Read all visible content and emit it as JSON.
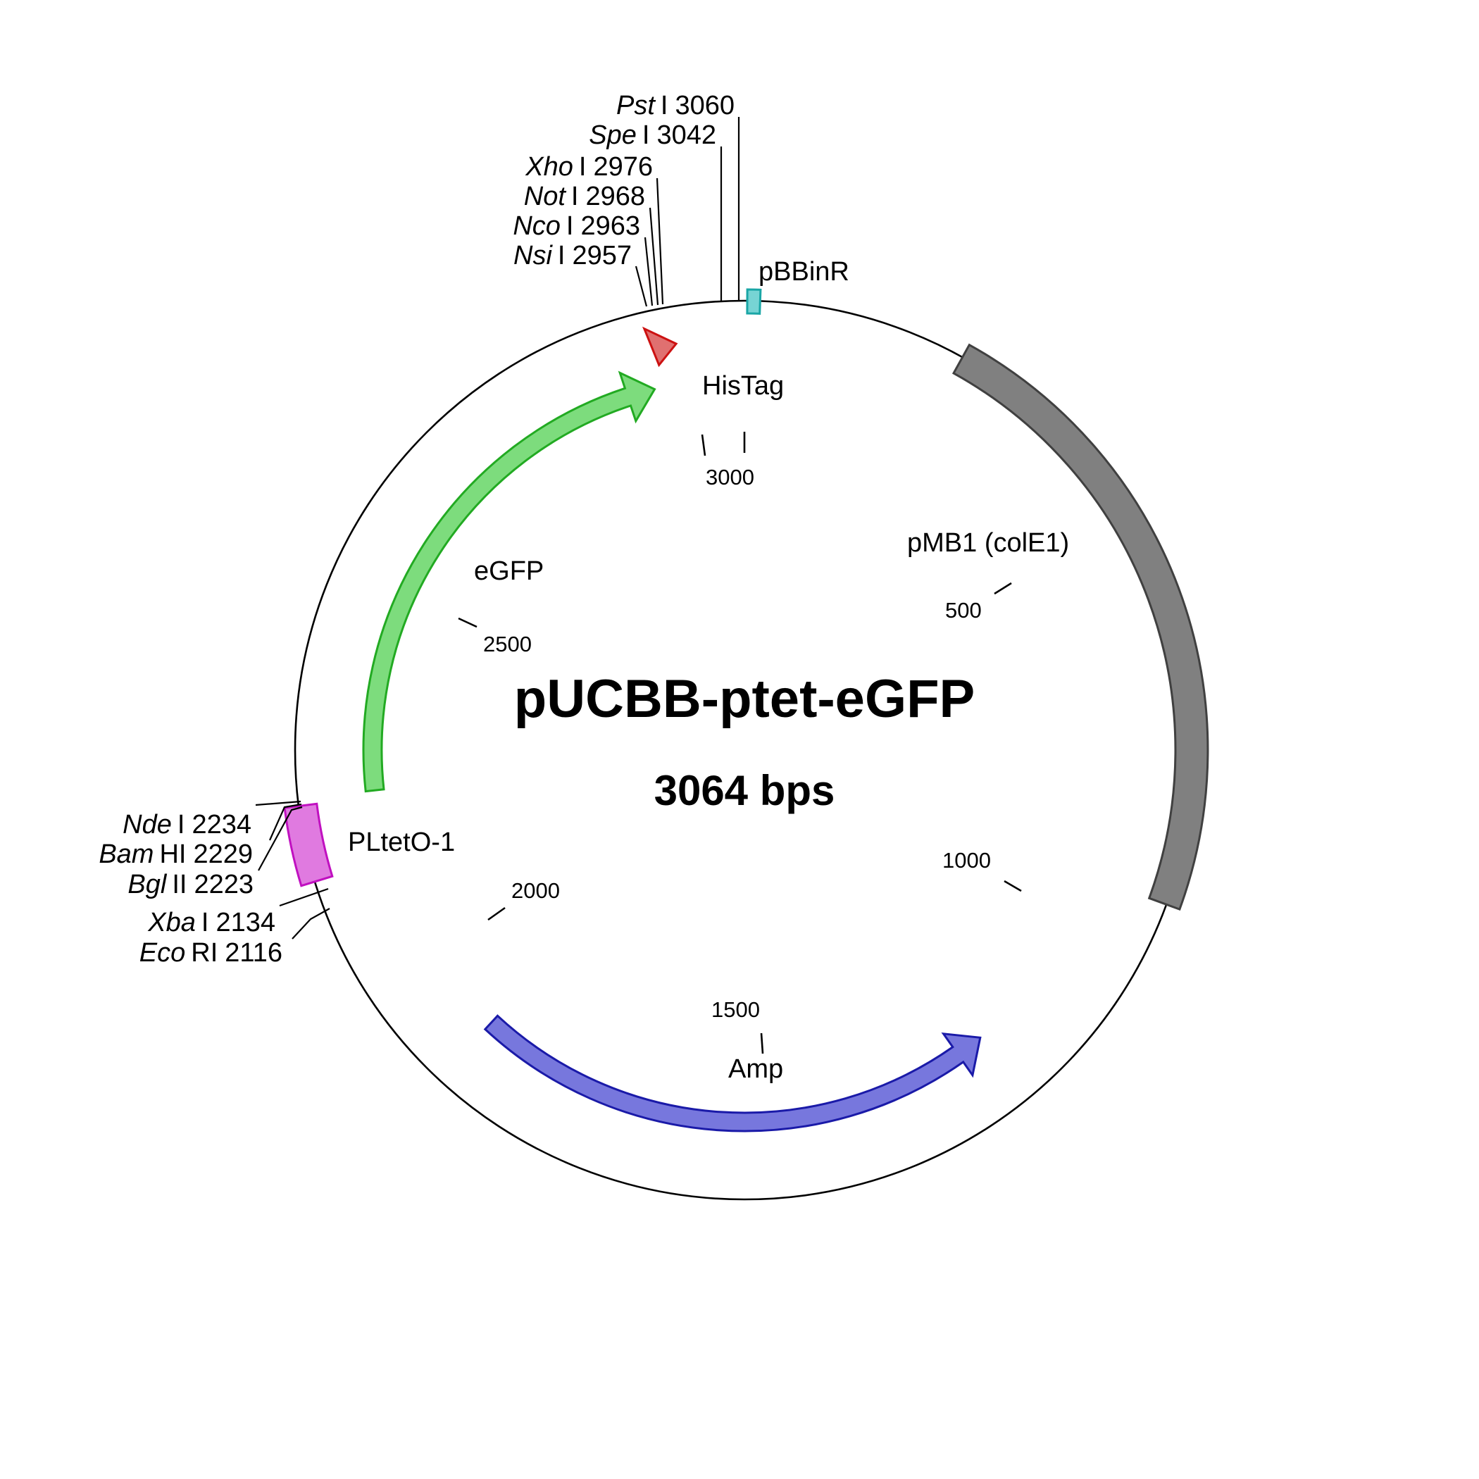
{
  "plasmid": {
    "name": "pUCBB-ptet-eGFP",
    "size_label": "3064 bps",
    "length_bp": 3064
  },
  "features": [
    {
      "key": "colE1",
      "label": "pMB1 (colE1)",
      "start": 230,
      "end": 920,
      "color": "#808080",
      "stroke": "#404040",
      "kind": "band"
    },
    {
      "key": "amp",
      "label": "Amp",
      "start": 1180,
      "end": 1880,
      "color": "#7777dd",
      "stroke": "#1a1aa8",
      "kind": "arrow",
      "strand": "reverse"
    },
    {
      "key": "pltet",
      "label": "PLtetO-1",
      "start": 2136,
      "end": 2220,
      "color": "#e07ae0",
      "stroke": "#c010c0",
      "kind": "box"
    },
    {
      "key": "egfp",
      "label": "eGFP",
      "start": 2228,
      "end": 2928,
      "color": "#7ddc7d",
      "stroke": "#22aa22",
      "kind": "arrow",
      "strand": "forward"
    },
    {
      "key": "histag",
      "label": "HisTag",
      "start": 2938,
      "end": 2956,
      "color": "#e07070",
      "stroke": "#cc1111",
      "kind": "tri"
    },
    {
      "key": "pbbinr",
      "label": "pBBinR",
      "start": 3050,
      "end": 3064,
      "color": "#77d4d4",
      "stroke": "#1aa6a6",
      "kind": "box"
    }
  ],
  "sites": [
    {
      "key": "psti",
      "enzyme": "Pst",
      "suffix": "I",
      "position": "3060",
      "pos": 3060
    },
    {
      "key": "spei",
      "enzyme": "Spe",
      "suffix": "I",
      "position": "3042",
      "pos": 3042
    },
    {
      "key": "xhoi",
      "enzyme": "Xho",
      "suffix": "I",
      "position": "2976",
      "pos": 2976
    },
    {
      "key": "noti",
      "enzyme": "Not",
      "suffix": "I",
      "position": "2968",
      "pos": 2968
    },
    {
      "key": "ncoi",
      "enzyme": "Nco",
      "suffix": "I",
      "position": "2963",
      "pos": 2963
    },
    {
      "key": "nsii",
      "enzyme": "Nsi",
      "suffix": "I",
      "position": "2957",
      "pos": 2957
    },
    {
      "key": "ndei",
      "enzyme": "Nde",
      "suffix": "I",
      "position": "2234",
      "pos": 2234
    },
    {
      "key": "bamhi",
      "enzyme": "Bam",
      "suffix": "HI",
      "position": "2229",
      "pos": 2229
    },
    {
      "key": "bglii",
      "enzyme": "Bgl",
      "suffix": "II",
      "position": "2223",
      "pos": 2223
    },
    {
      "key": "xbai",
      "enzyme": "Xba",
      "suffix": "I",
      "position": "2134",
      "pos": 2134
    },
    {
      "key": "ecori",
      "enzyme": "Eco",
      "suffix": "RI",
      "position": "2116",
      "pos": 2116
    }
  ],
  "ticks": [
    {
      "key": "t500",
      "label": "500",
      "pos": 500
    },
    {
      "key": "t1000",
      "label": "1000",
      "pos": 1000
    },
    {
      "key": "t1500",
      "label": "1500",
      "pos": 1500
    },
    {
      "key": "t2000",
      "label": "2000",
      "pos": 2000
    },
    {
      "key": "t2500",
      "label": "2500",
      "pos": 2500
    },
    {
      "key": "t3000",
      "label": "3000",
      "pos": 3000
    }
  ]
}
